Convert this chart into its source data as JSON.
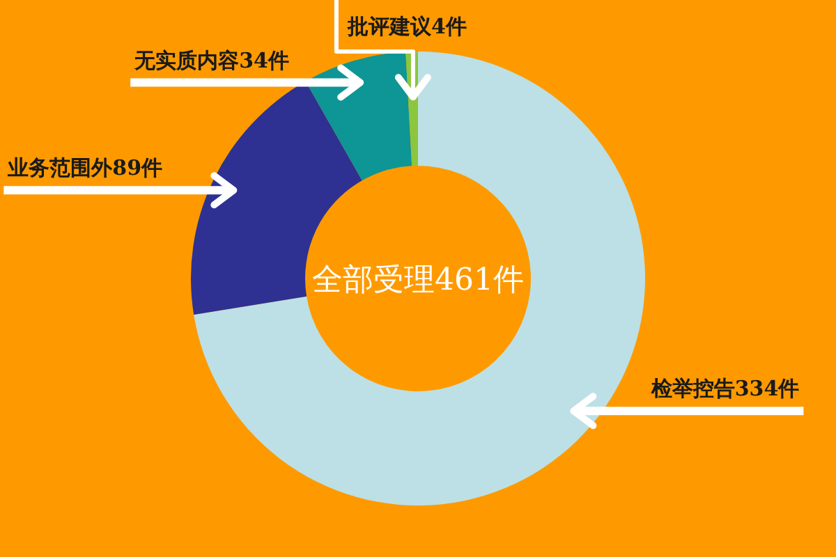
{
  "chart_data": {
    "type": "donut",
    "categories": [
      "检举控告334件",
      "业务范围外89件",
      "无实质内容34件",
      "批评建议4件"
    ],
    "values": [
      334,
      89,
      34,
      4
    ],
    "colors": [
      "#bce0e5",
      "#2e3192",
      "#0e9595",
      "#8cc63e"
    ],
    "annotations": [
      "全部受理461件"
    ]
  }
}
